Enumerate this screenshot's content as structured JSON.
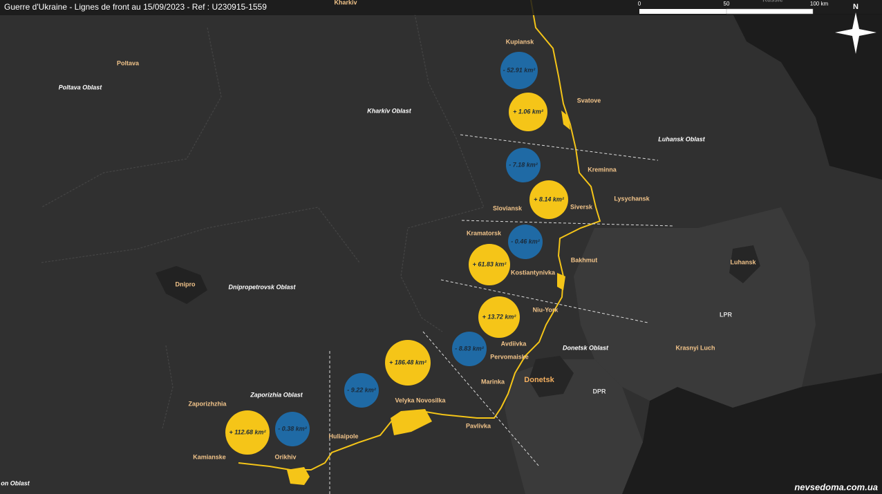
{
  "header": {
    "title": "Guerre d'Ukraine - Lignes de front au 15/09/2023 - Ref : U230915-1559"
  },
  "scale": {
    "labels": [
      "0",
      "50",
      "100 km"
    ]
  },
  "compass": {
    "label": "N"
  },
  "places": [
    "Kharkiv",
    "Russie",
    "Kupiansk",
    "Svatove",
    "Kreminna",
    "Lysychansk",
    "Siversk",
    "Sloviansk",
    "Kramatorsk",
    "Bakhmut",
    "Kostiantynivka",
    "Niu-York",
    "Avdiivka",
    "Pervomaiske",
    "Marinka",
    "Donetsk",
    "Pavlivka",
    "Velyka Novosilka",
    "Huliaipole",
    "Orikhiv",
    "Kamianske",
    "Zaporizhzhia",
    "Dnipro",
    "Poltava",
    "Luhansk",
    "Krasnyi Luch",
    "LPR",
    "DPR"
  ],
  "regions": [
    "Poltava Oblast",
    "Kharkiv Oblast",
    "Luhansk Oblast",
    "Dnipropetrovsk Oblast",
    "Donetsk Oblast",
    "Zaporizhia Oblast",
    "on Oblast"
  ],
  "changes": [
    "- 52.91 km²",
    "+ 1.06 km²",
    "- 7.18 km²",
    "+ 8.14 km²",
    "- 0.46 km²",
    "+ 61.83 km²",
    "+ 13.72 km²",
    "- 8.83 km²",
    "+ 186.48 km²",
    "- 9.22 km²",
    "+ 112.68 km²",
    "- 0.38 km²"
  ],
  "watermark": "nevsedoma.com.ua"
}
